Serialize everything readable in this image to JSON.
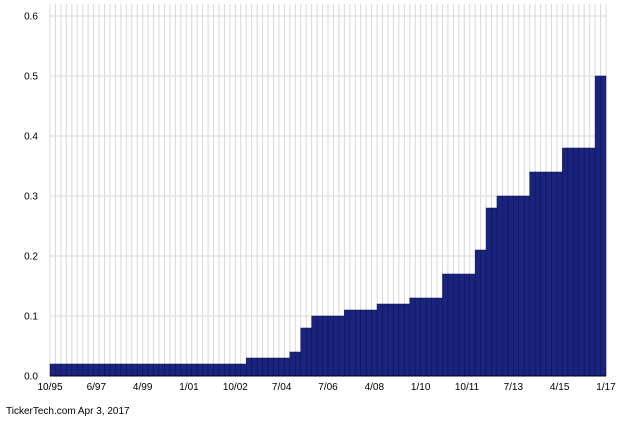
{
  "chart_data": {
    "type": "bar",
    "series": [
      {
        "values": [
          0.02,
          0.02,
          0.02,
          0.02,
          0.02,
          0.02,
          0.02,
          0.02,
          0.02,
          0.02,
          0.02,
          0.02,
          0.02,
          0.02,
          0.02,
          0.02,
          0.02,
          0.02,
          0.02,
          0.02,
          0.02,
          0.02,
          0.02,
          0.02,
          0.02,
          0.02,
          0.02,
          0.02,
          0.02,
          0.02,
          0.02,
          0.02,
          0.02,
          0.02,
          0.02,
          0.02,
          0.03,
          0.03,
          0.03,
          0.03,
          0.03,
          0.03,
          0.03,
          0.03,
          0.04,
          0.04,
          0.08,
          0.08,
          0.1,
          0.1,
          0.1,
          0.1,
          0.1,
          0.1,
          0.11,
          0.11,
          0.11,
          0.11,
          0.11,
          0.11,
          0.12,
          0.12,
          0.12,
          0.12,
          0.12,
          0.12,
          0.13,
          0.13,
          0.13,
          0.13,
          0.13,
          0.13,
          0.17,
          0.17,
          0.17,
          0.17,
          0.17,
          0.17,
          0.21,
          0.21,
          0.28,
          0.28,
          0.3,
          0.3,
          0.3,
          0.3,
          0.3,
          0.3,
          0.34,
          0.34,
          0.34,
          0.34,
          0.34,
          0.34,
          0.38,
          0.38,
          0.38,
          0.38,
          0.38,
          0.38,
          0.5,
          0.5
        ]
      }
    ],
    "x_tick_labels": [
      "10/95",
      "6/97",
      "4/99",
      "1/01",
      "10/02",
      "7/04",
      "7/06",
      "4/08",
      "1/10",
      "10/11",
      "7/13",
      "4/15",
      "1/17"
    ],
    "y_tick_labels": [
      "0.0",
      "0.1",
      "0.2",
      "0.3",
      "0.4",
      "0.5",
      "0.6"
    ],
    "ylim": [
      0,
      0.62
    ],
    "grid": true,
    "bar_color": "#1a237e",
    "title": "",
    "xlabel": "",
    "ylabel": ""
  },
  "footer": {
    "text": "TickerTech.com  Apr 3, 2017"
  }
}
